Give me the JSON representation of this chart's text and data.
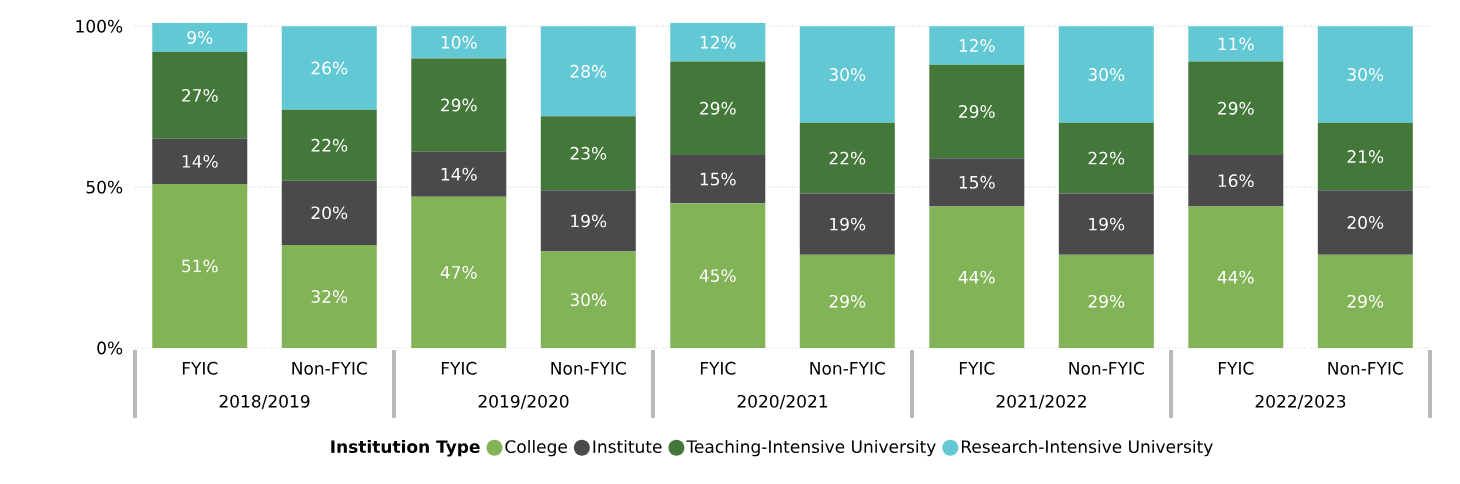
{
  "chart_data": {
    "type": "bar",
    "stacked": true,
    "legend_title": "Institution Type",
    "legend": "bottom",
    "grid": "y",
    "categories": [
      "FYIC",
      "Non-FYIC",
      "FYIC",
      "Non-FYIC",
      "FYIC",
      "Non-FYIC",
      "FYIC",
      "Non-FYIC",
      "FYIC",
      "Non-FYIC"
    ],
    "annotations": [
      "2018/2019",
      "2019/2020",
      "2020/2021",
      "2021/2022",
      "2022/2023"
    ],
    "ylim": [
      0,
      101
    ],
    "yticks": [
      {
        "value": 0,
        "label": "0%"
      },
      {
        "value": 50,
        "label": "50%"
      },
      {
        "value": 100,
        "label": "100%"
      }
    ],
    "series": [
      {
        "name": "College",
        "color": "#82b356",
        "values": [
          51,
          32,
          47,
          30,
          45,
          29,
          44,
          29,
          44,
          29
        ],
        "value_labels": [
          "51%",
          "32%",
          "47%",
          "30%",
          "45%",
          "29%",
          "44%",
          "29%",
          "44%",
          "29%"
        ]
      },
      {
        "name": "Institute",
        "color": "#4a4a4c",
        "values": [
          14,
          20,
          14,
          19,
          15,
          19,
          15,
          19,
          16,
          20
        ],
        "value_labels": [
          "14%",
          "20%",
          "14%",
          "19%",
          "15%",
          "19%",
          "15%",
          "19%",
          "16%",
          "20%"
        ]
      },
      {
        "name": "Teaching-Intensive University",
        "color": "#44783a",
        "values": [
          27,
          22,
          29,
          23,
          29,
          22,
          29,
          22,
          29,
          21
        ],
        "value_labels": [
          "27%",
          "22%",
          "29%",
          "23%",
          "29%",
          "22%",
          "29%",
          "22%",
          "29%",
          "21%"
        ]
      },
      {
        "name": "Research-Intensive University",
        "color": "#62c8d4",
        "values": [
          9,
          26,
          10,
          28,
          12,
          30,
          12,
          30,
          11,
          30
        ],
        "value_labels": [
          "9%",
          "26%",
          "10%",
          "28%",
          "12%",
          "30%",
          "12%",
          "30%",
          "11%",
          "30%"
        ]
      }
    ]
  }
}
